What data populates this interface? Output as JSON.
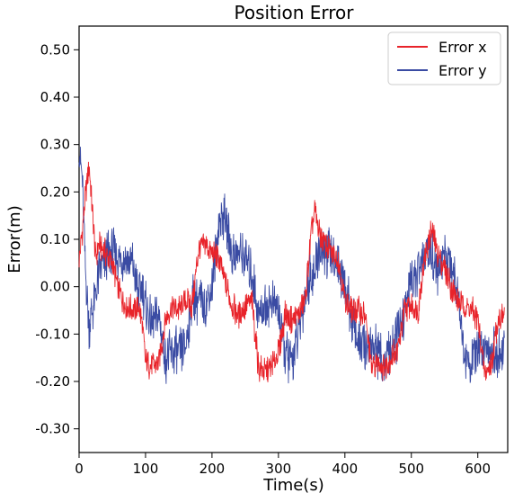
{
  "chart_data": {
    "type": "line",
    "title": "Position Error",
    "xlabel": "Time(s)",
    "ylabel": "Error(m)",
    "xlim": [
      0,
      645
    ],
    "ylim": [
      -0.35,
      0.55
    ],
    "x_ticks": [
      0,
      100,
      200,
      300,
      400,
      500,
      600
    ],
    "x_tick_labels": [
      "0",
      "100",
      "200",
      "300",
      "400",
      "500",
      "600"
    ],
    "y_ticks": [
      0.5,
      0.4,
      0.3,
      0.2,
      0.1,
      0.0,
      -0.1,
      -0.2,
      -0.3
    ],
    "y_tick_labels": [
      "0.50",
      "0.40",
      "0.30",
      "0.20",
      "0.10",
      "0.00",
      "-0.10",
      "-0.20",
      "-0.30"
    ],
    "grid": false,
    "legend_position": "top-right",
    "series": [
      {
        "name": "Error x",
        "color": "#e8232a",
        "noise": 0.035,
        "x": [
          0,
          5,
          10,
          15,
          20,
          25,
          30,
          40,
          50,
          60,
          70,
          80,
          90,
          95,
          100,
          110,
          120,
          130,
          140,
          150,
          160,
          170,
          180,
          190,
          200,
          210,
          220,
          230,
          240,
          250,
          260,
          270,
          280,
          290,
          300,
          310,
          320,
          330,
          340,
          350,
          355,
          360,
          370,
          380,
          390,
          400,
          410,
          420,
          430,
          440,
          450,
          460,
          470,
          480,
          490,
          500,
          510,
          520,
          530,
          540,
          550,
          560,
          570,
          580,
          590,
          600,
          610,
          620,
          630,
          640
        ],
        "y": [
          0.06,
          0.12,
          0.2,
          0.26,
          0.16,
          0.06,
          0.09,
          0.07,
          0.05,
          -0.01,
          -0.04,
          -0.05,
          -0.04,
          -0.08,
          -0.16,
          -0.17,
          -0.16,
          -0.07,
          -0.04,
          -0.05,
          -0.03,
          -0.04,
          0.08,
          0.09,
          0.07,
          0.06,
          0.01,
          -0.04,
          -0.06,
          -0.04,
          -0.03,
          -0.17,
          -0.18,
          -0.17,
          -0.14,
          -0.06,
          -0.07,
          -0.06,
          -0.03,
          0.12,
          0.16,
          0.12,
          0.09,
          0.07,
          0.06,
          -0.03,
          -0.05,
          -0.05,
          -0.06,
          -0.17,
          -0.16,
          -0.17,
          -0.15,
          -0.13,
          -0.05,
          -0.04,
          -0.05,
          0.06,
          0.12,
          0.07,
          0.04,
          0.0,
          -0.03,
          -0.04,
          -0.05,
          -0.07,
          -0.18,
          -0.17,
          -0.07,
          -0.06
        ]
      },
      {
        "name": "Error y",
        "color": "#3a4ba3",
        "noise": 0.06,
        "x": [
          0,
          5,
          10,
          15,
          20,
          25,
          30,
          40,
          50,
          60,
          70,
          80,
          90,
          95,
          100,
          110,
          120,
          130,
          140,
          150,
          160,
          170,
          180,
          190,
          200,
          210,
          220,
          230,
          240,
          250,
          260,
          270,
          280,
          290,
          300,
          310,
          320,
          330,
          340,
          350,
          355,
          360,
          370,
          380,
          390,
          400,
          410,
          420,
          430,
          440,
          450,
          460,
          470,
          480,
          490,
          500,
          510,
          520,
          530,
          540,
          550,
          560,
          570,
          580,
          590,
          600,
          610,
          620,
          630,
          640
        ],
        "y": [
          0.3,
          0.22,
          0.02,
          -0.08,
          -0.05,
          -0.02,
          0.03,
          0.06,
          0.07,
          0.06,
          0.06,
          0.05,
          -0.02,
          0.0,
          -0.04,
          -0.08,
          -0.06,
          -0.15,
          -0.14,
          -0.14,
          -0.13,
          -0.02,
          -0.03,
          -0.04,
          0.0,
          0.13,
          0.15,
          0.07,
          0.07,
          0.06,
          0.03,
          -0.06,
          -0.04,
          -0.03,
          -0.05,
          -0.14,
          -0.16,
          -0.1,
          -0.02,
          0.03,
          0.02,
          0.08,
          0.07,
          0.07,
          0.05,
          0.0,
          -0.06,
          -0.12,
          -0.13,
          -0.12,
          -0.14,
          -0.16,
          -0.14,
          -0.1,
          -0.05,
          0.02,
          0.03,
          0.06,
          0.08,
          0.02,
          0.07,
          0.05,
          0.0,
          -0.15,
          -0.16,
          -0.14,
          -0.12,
          -0.13,
          -0.15,
          -0.13
        ]
      }
    ]
  }
}
